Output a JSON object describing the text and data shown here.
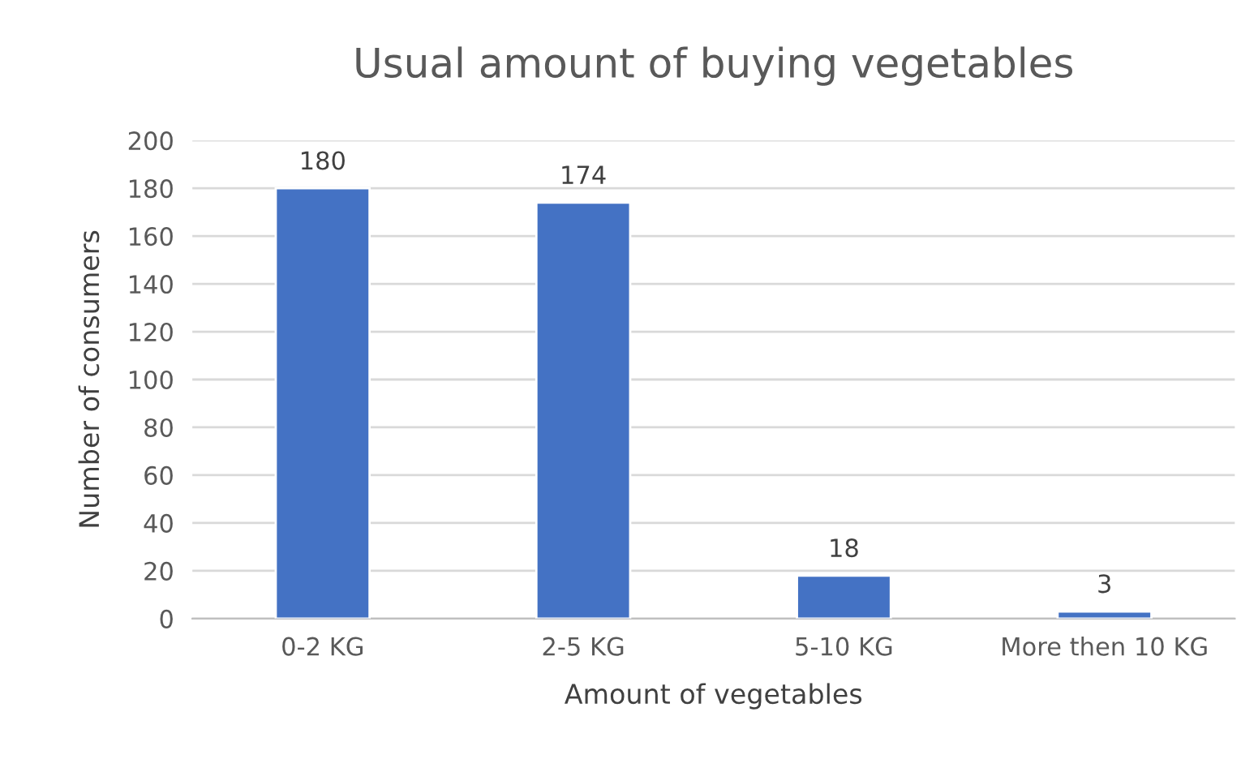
{
  "chart_data": {
    "type": "bar",
    "title": "Usual amount of buying vegetables",
    "xlabel": "Amount of vegetables",
    "ylabel": "Number of consumers",
    "categories": [
      "0-2 KG",
      "2-5 KG",
      "5-10 KG",
      "More then 10 KG"
    ],
    "values": [
      180,
      174,
      18,
      3
    ],
    "color": "#4472c4",
    "ylim": [
      0,
      200
    ],
    "yticks": [
      0,
      20,
      40,
      60,
      80,
      100,
      120,
      140,
      160,
      180,
      200
    ],
    "grid": "y",
    "data_labels": true,
    "legend": false
  }
}
